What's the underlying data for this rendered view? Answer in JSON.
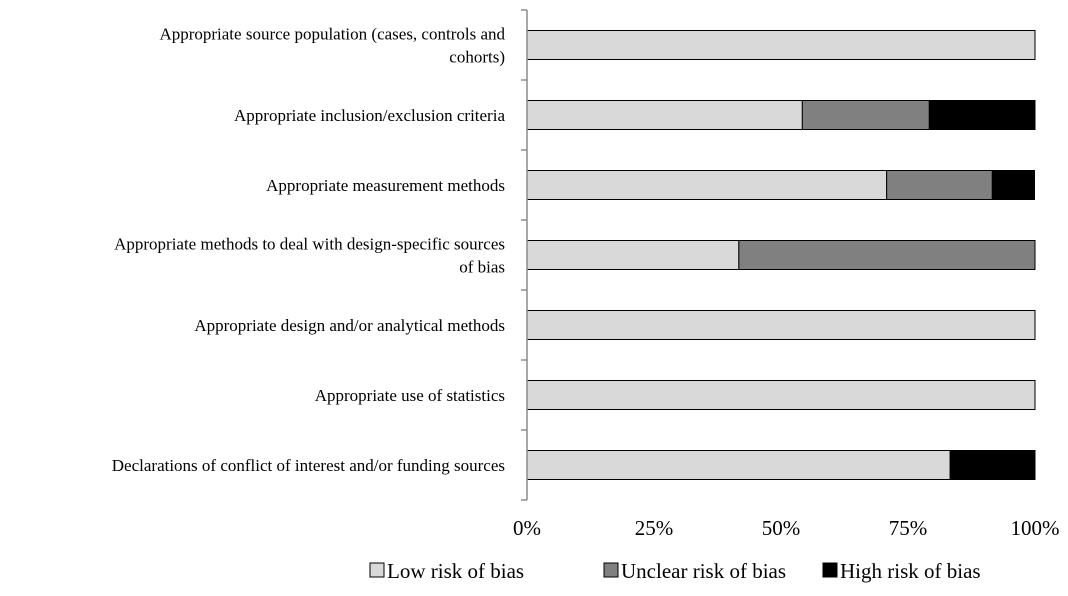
{
  "chart_data": {
    "type": "bar",
    "orientation": "horizontal",
    "stacked": true,
    "percent": true,
    "title": "",
    "xlabel": "",
    "ylabel": "",
    "xlim": [
      0,
      100
    ],
    "grid": false,
    "legend_position": "bottom",
    "categories": [
      [
        "Appropriate source population (cases, controls and",
        "cohorts)"
      ],
      [
        "Appropriate inclusion/exclusion criteria"
      ],
      [
        "Appropriate measurement methods"
      ],
      [
        "Appropriate methods to deal with design-specific sources",
        "of bias"
      ],
      [
        "Appropriate design and/or analytical methods"
      ],
      [
        "Appropriate use of statistics"
      ],
      [
        "Declarations of conflict of interest and/or funding sources"
      ]
    ],
    "series": [
      {
        "name": "Low risk of bias",
        "color": "#d9d9d9",
        "values": [
          100,
          54.2,
          70.8,
          41.7,
          100,
          100,
          83.3
        ]
      },
      {
        "name": "Unclear risk of bias",
        "color": "#808080",
        "values": [
          0,
          25,
          20.8,
          58.3,
          0,
          0,
          0
        ]
      },
      {
        "name": "High risk of bias",
        "color": "#000000",
        "values": [
          0,
          20.8,
          8.3,
          0,
          0,
          0,
          16.7
        ]
      }
    ],
    "ticks": [
      "0%",
      "25%",
      "50%",
      "75%",
      "100%"
    ]
  }
}
